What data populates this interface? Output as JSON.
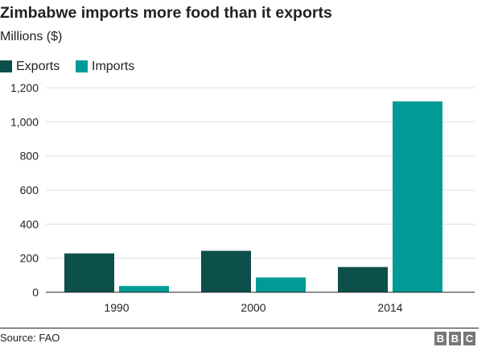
{
  "title": "Zimbabwe imports more food than it exports",
  "subtitle": "Millions ($)",
  "source": "Source: FAO",
  "logo": [
    "B",
    "B",
    "C"
  ],
  "colors": {
    "exports": "#0d4f4a",
    "imports": "#009b97",
    "grid": "#dddddd",
    "axis": "#222222",
    "logo_box": "#777777"
  },
  "chart_data": {
    "type": "bar",
    "categories": [
      "1990",
      "2000",
      "2014"
    ],
    "series": [
      {
        "name": "Exports",
        "values": [
          228,
          243,
          148
        ]
      },
      {
        "name": "Imports",
        "values": [
          37,
          87,
          1120
        ]
      }
    ],
    "ylim": [
      0,
      1200
    ],
    "yticks": [
      0,
      200,
      400,
      600,
      800,
      1000,
      1200
    ],
    "ytick_labels": [
      "0",
      "200",
      "400",
      "600",
      "800",
      "1,000",
      "1,200"
    ],
    "grid": true,
    "legend": "top-left"
  }
}
